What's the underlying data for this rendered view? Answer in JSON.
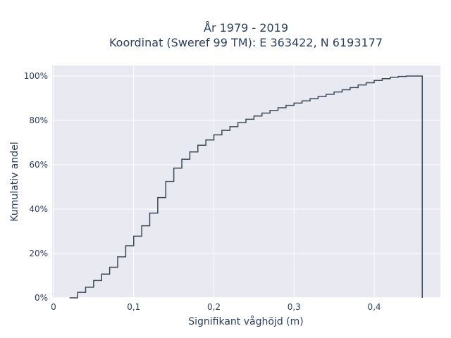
{
  "chart_data": {
    "type": "line",
    "line_shape": "step",
    "title": [
      "År 1979 - 2019",
      "Koordinat (Sweref 99 TM): E 363422, N 6193177"
    ],
    "xlabel": "Signifikant våghöjd (m)",
    "ylabel": "Kumulativ andel",
    "xlim": [
      0,
      0.48
    ],
    "ylim": [
      0,
      1.05
    ],
    "x_ticks": [
      0,
      0.1,
      0.2,
      0.3,
      0.4
    ],
    "x_tick_labels": [
      "0",
      "0,1",
      "0,2",
      "0,3",
      "0,4"
    ],
    "y_ticks": [
      0,
      0.2,
      0.4,
      0.6,
      0.8,
      1.0
    ],
    "y_tick_labels": [
      "0%",
      "20%",
      "40%",
      "60%",
      "80%",
      "100%"
    ],
    "grid": true,
    "background": "#e9e9f1",
    "line_color": "#3b4a5a",
    "series": [
      {
        "x": [
          0.02,
          0.03,
          0.04,
          0.05,
          0.06,
          0.07,
          0.08,
          0.09,
          0.1,
          0.11,
          0.12,
          0.13,
          0.14,
          0.15,
          0.16,
          0.17,
          0.18,
          0.19,
          0.2,
          0.21,
          0.22,
          0.23,
          0.24,
          0.25,
          0.26,
          0.27,
          0.28,
          0.29,
          0.3,
          0.31,
          0.32,
          0.33,
          0.34,
          0.35,
          0.36,
          0.37,
          0.38,
          0.39,
          0.4,
          0.41,
          0.42,
          0.43,
          0.44,
          0.45,
          0.46
        ],
        "y": [
          0.0,
          0.025,
          0.048,
          0.078,
          0.107,
          0.138,
          0.185,
          0.235,
          0.278,
          0.325,
          0.382,
          0.452,
          0.525,
          0.585,
          0.625,
          0.658,
          0.688,
          0.712,
          0.735,
          0.755,
          0.772,
          0.79,
          0.805,
          0.82,
          0.833,
          0.845,
          0.857,
          0.868,
          0.878,
          0.888,
          0.898,
          0.908,
          0.918,
          0.928,
          0.938,
          0.948,
          0.96,
          0.97,
          0.98,
          0.988,
          0.995,
          0.998,
          1.0,
          1.0,
          0.0
        ]
      }
    ]
  }
}
